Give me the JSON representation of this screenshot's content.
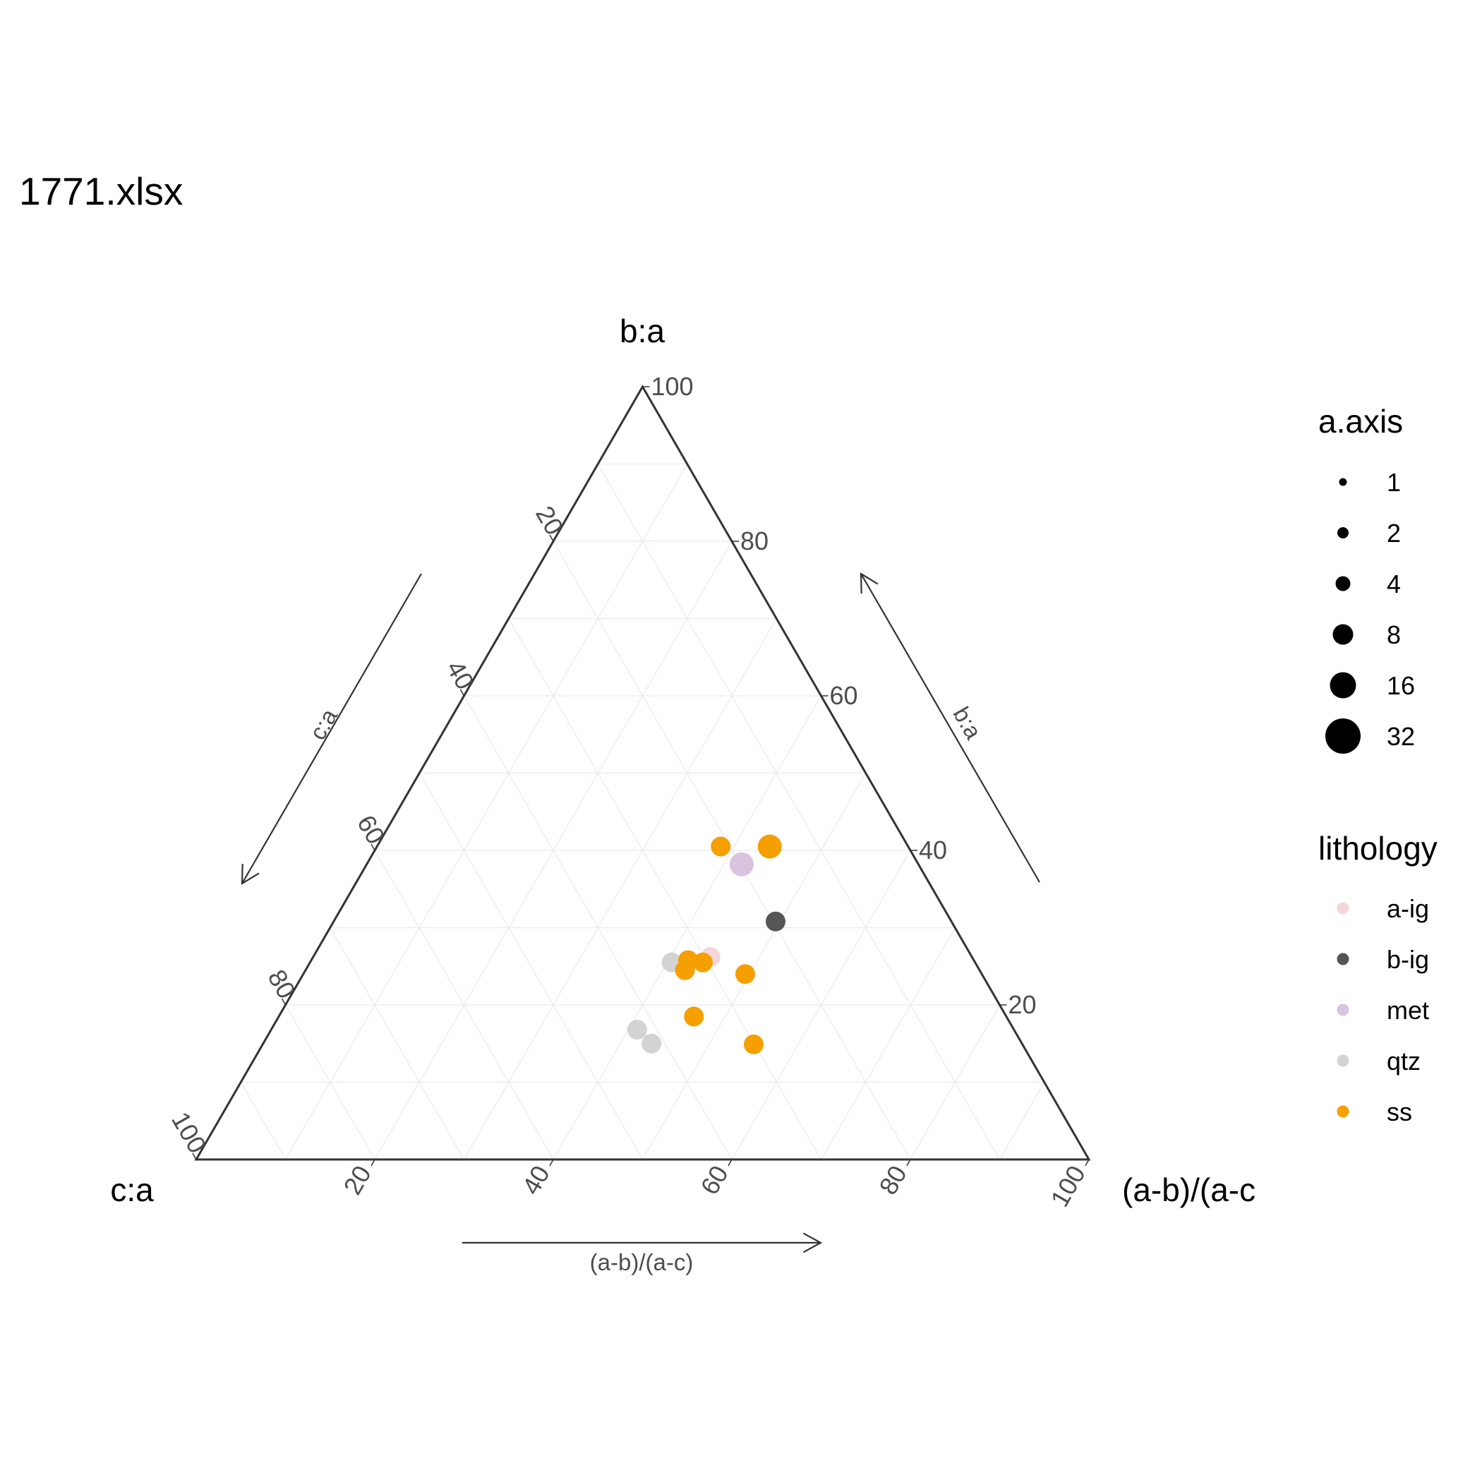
{
  "chart_data": {
    "type": "scatter",
    "subtype": "ternary",
    "title": "1771.xlsx",
    "axes": {
      "top": {
        "label": "b:a",
        "arrow_label": "b:a"
      },
      "left": {
        "label": "c:a",
        "arrow_label": "c:a"
      },
      "right": {
        "label": "(a-b)/(a-c",
        "arrow_label": "(a-b)/(a-c)"
      }
    },
    "ticks": [
      "20",
      "40",
      "60",
      "80",
      "100"
    ],
    "ticks_top": [
      "20",
      "40",
      "60",
      "80",
      "100"
    ],
    "grid": true,
    "legend_position": "right",
    "size_legend": {
      "title": "a.axis",
      "entries": [
        {
          "label": "1",
          "value": 1
        },
        {
          "label": "2",
          "value": 2
        },
        {
          "label": "4",
          "value": 4
        },
        {
          "label": "8",
          "value": 8
        },
        {
          "label": "16",
          "value": 16
        },
        {
          "label": "32",
          "value": 32
        }
      ]
    },
    "color_legend": {
      "title": "lithology",
      "entries": [
        {
          "label": "a-ig",
          "color": "#f4d6da"
        },
        {
          "label": "b-ig",
          "color": "#555555"
        },
        {
          "label": "met",
          "color": "#d9c3de"
        },
        {
          "label": "qtz",
          "color": "#d3d3d3"
        },
        {
          "label": "ss",
          "color": "#f5a000"
        }
      ]
    },
    "points": [
      {
        "b_a": 40.5,
        "ab_ac": 38.5,
        "c_a": 21.0,
        "lithology": "ss",
        "size": 8
      },
      {
        "b_a": 40.5,
        "ab_ac": 44.0,
        "c_a": 15.5,
        "lithology": "ss",
        "size": 16
      },
      {
        "b_a": 38.2,
        "ab_ac": 42.0,
        "c_a": 19.8,
        "lithology": "met",
        "size": 16
      },
      {
        "b_a": 30.8,
        "ab_ac": 49.5,
        "c_a": 19.7,
        "lithology": "b-ig",
        "size": 8
      },
      {
        "b_a": 26.2,
        "ab_ac": 44.5,
        "c_a": 29.3,
        "lithology": "a-ig",
        "size": 8
      },
      {
        "b_a": 25.5,
        "ab_ac": 40.5,
        "c_a": 34.0,
        "lithology": "qtz",
        "size": 8
      },
      {
        "b_a": 25.5,
        "ab_ac": 44.0,
        "c_a": 30.5,
        "lithology": "ss",
        "size": 8
      },
      {
        "b_a": 25.8,
        "ab_ac": 42.2,
        "c_a": 32.0,
        "lithology": "ss",
        "size": 8
      },
      {
        "b_a": 24.5,
        "ab_ac": 42.5,
        "c_a": 33.0,
        "lithology": "ss",
        "size": 8
      },
      {
        "b_a": 24.0,
        "ab_ac": 49.5,
        "c_a": 26.5,
        "lithology": "ss",
        "size": 8
      },
      {
        "b_a": 18.5,
        "ab_ac": 46.5,
        "c_a": 35.0,
        "lithology": "ss",
        "size": 8
      },
      {
        "b_a": 16.8,
        "ab_ac": 41.0,
        "c_a": 42.2,
        "lithology": "qtz",
        "size": 8
      },
      {
        "b_a": 15.0,
        "ab_ac": 43.5,
        "c_a": 41.5,
        "lithology": "qtz",
        "size": 8
      },
      {
        "b_a": 14.9,
        "ab_ac": 55.0,
        "c_a": 30.1,
        "lithology": "ss",
        "size": 8
      }
    ]
  }
}
